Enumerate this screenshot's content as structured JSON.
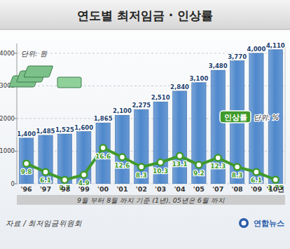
{
  "chart_data": {
    "type": "bar",
    "title": "연도별 최저임금 · 인상률",
    "y_label": "단위: 원",
    "y2_label": "단위: %",
    "categories": [
      "'96",
      "'97",
      "'98",
      "'99",
      "'00",
      "'01",
      "'02",
      "'03",
      "'04",
      "'05",
      "'07",
      "'08",
      "'09",
      "'10년"
    ],
    "series": [
      {
        "type": "bar",
        "color": "#4f88cc",
        "values": [
          1400,
          1485,
          1525,
          1600,
          1865,
          2100,
          2275,
          2510,
          2840,
          3100,
          3480,
          3770,
          4000,
          4110
        ],
        "value_labels": [
          "1,400",
          "1,485",
          "1,525",
          "1,600",
          "1,865",
          "2,100",
          "2,275",
          "2,510",
          "2,840",
          "3,100",
          "3,480",
          "3,770",
          "4,000",
          "4,110"
        ]
      },
      {
        "name": "인상률",
        "type": "line",
        "axis": "y2",
        "color": "#3f9a2a",
        "marker": "circle",
        "values": [
          9.8,
          6.1,
          2.7,
          4.9,
          16.6,
          12.6,
          8.3,
          10.3,
          13.1,
          9.2,
          12.3,
          8.3,
          6.1,
          2.75
        ]
      }
    ],
    "ylim": [
      0,
      4300
    ],
    "yticks": [
      0,
      1000,
      2000,
      3000,
      4000
    ],
    "y2lim": [
      1,
      62
    ],
    "y2ticks": [],
    "grid": true,
    "data_labels": true,
    "notes": [
      "9월 부터 8월 까지 기준 (1년), 05년은 6월 까지"
    ],
    "source": "자료 / 최저임금위원회",
    "credit": "연합뉴스"
  }
}
